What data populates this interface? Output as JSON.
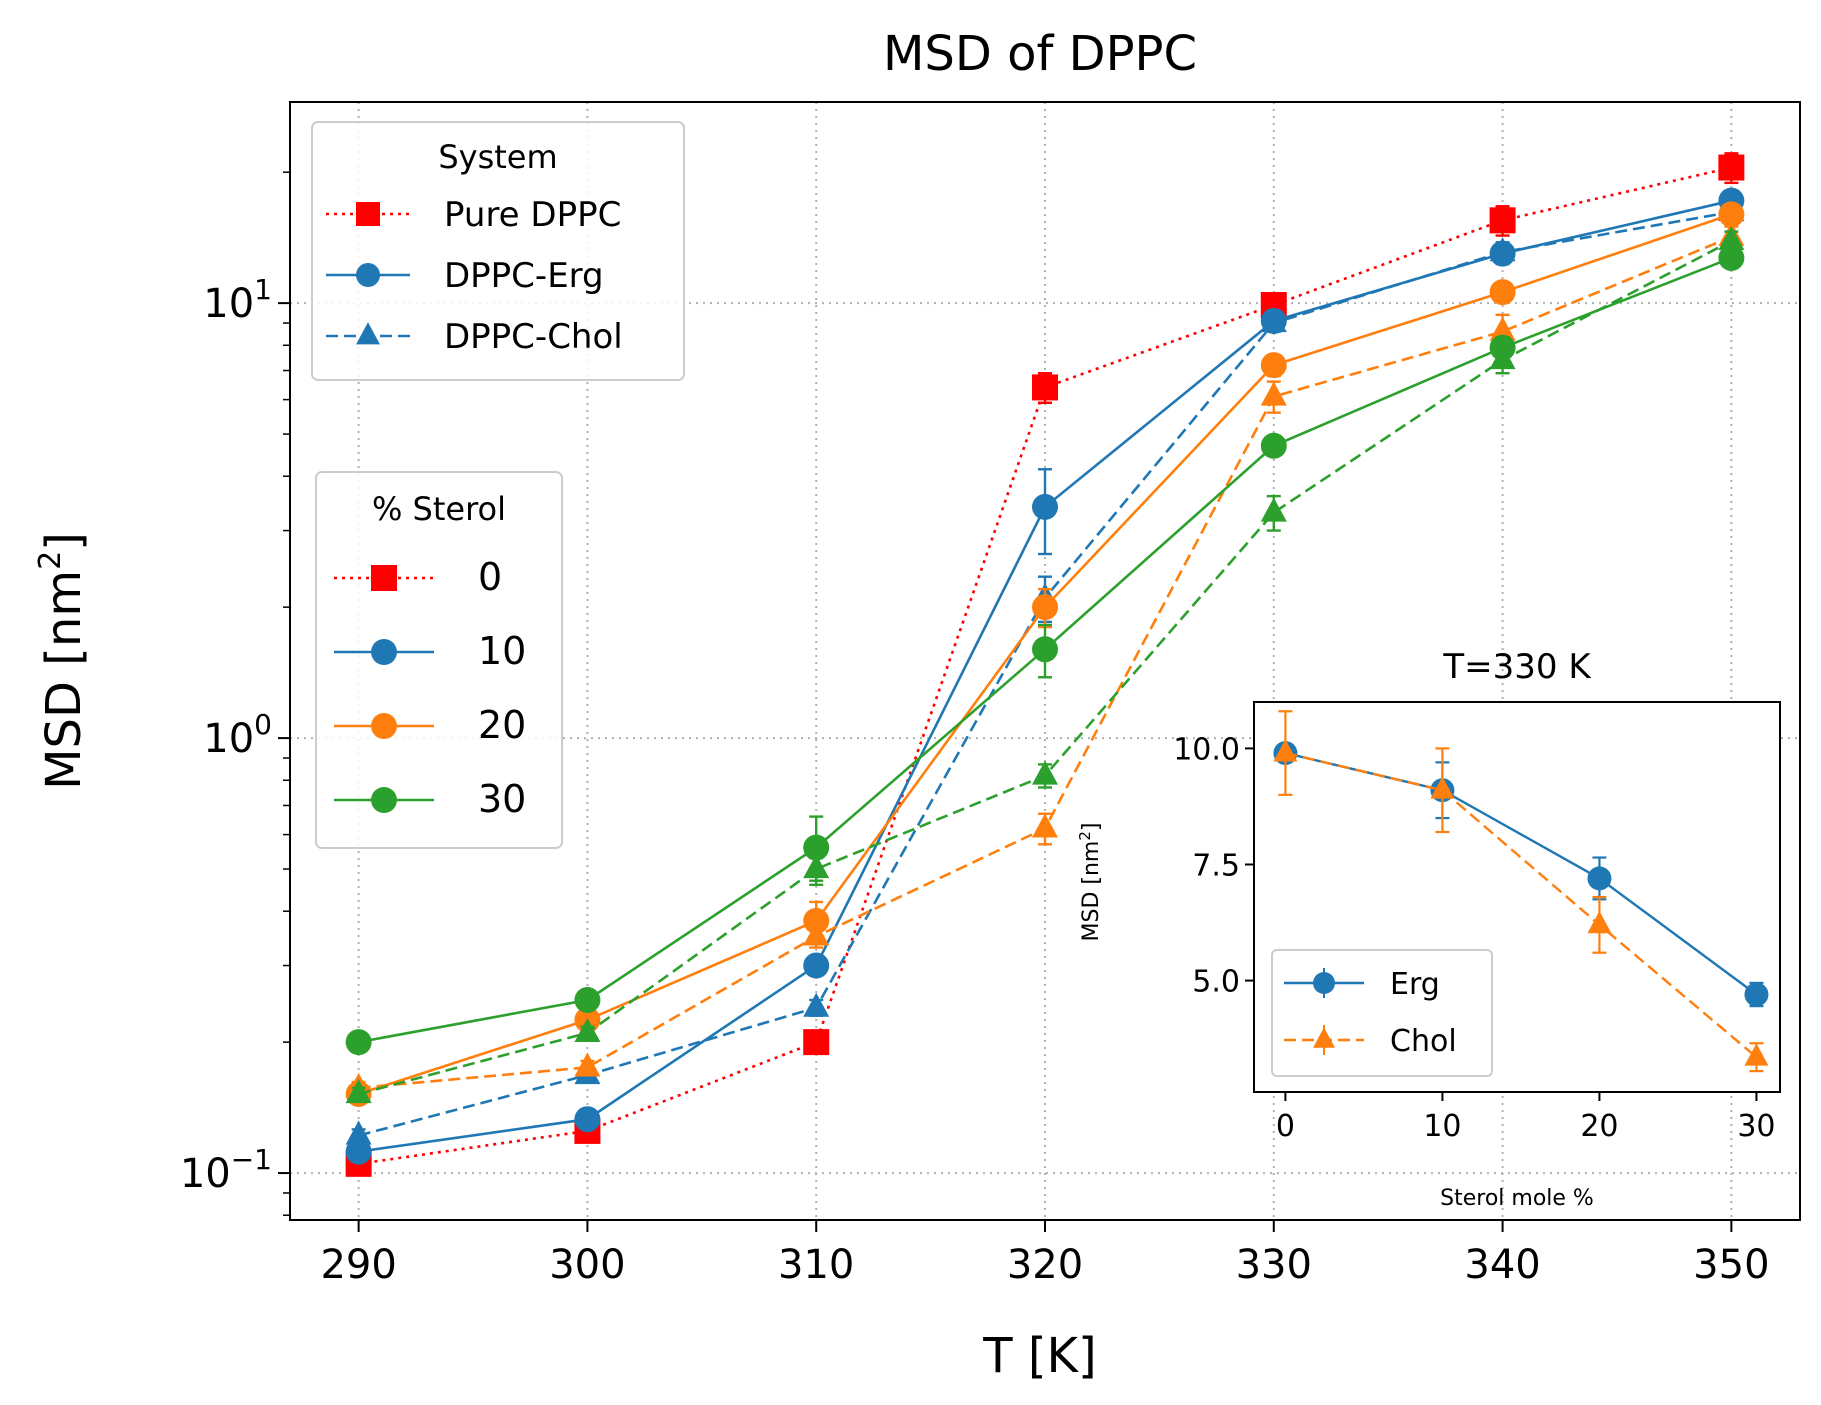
{
  "chart_data": {
    "type": "line",
    "title": "MSD of DPPC",
    "xlabel": "T [K]",
    "ylabel": "MSD [nm",
    "ylabel_sup": "2",
    "ylabel_end": "]",
    "yscale": "log",
    "xlim": [
      287,
      353
    ],
    "ylim": [
      0.078,
      29
    ],
    "x": [
      290,
      300,
      310,
      320,
      330,
      340,
      350
    ],
    "xticks": [
      "290",
      "300",
      "310",
      "320",
      "330",
      "340",
      "350"
    ],
    "yticks": [
      {
        "base": "10",
        "exp": "−1",
        "value": 0.1
      },
      {
        "base": "10",
        "exp": "0",
        "value": 1
      },
      {
        "base": "10",
        "exp": "1",
        "value": 10
      }
    ],
    "grid": true,
    "series": [
      {
        "name": "Pure DPPC",
        "sterol": 0,
        "color": "#ff0000",
        "marker": "square",
        "dash": "dotted",
        "values": [
          0.105,
          0.125,
          0.2,
          6.4,
          9.9,
          15.5,
          20.5
        ],
        "errors": [
          0.005,
          0.006,
          0.01,
          0.5,
          0.6,
          1.2,
          1.6
        ]
      },
      {
        "name": "DPPC-Erg 10",
        "sterol": 10,
        "color": "#1f77b4",
        "marker": "circle",
        "dash": "solid",
        "values": [
          0.112,
          0.133,
          0.3,
          3.4,
          9.1,
          13.0,
          17.2
        ],
        "errors": [
          0.004,
          0.005,
          0.015,
          0.75,
          0.5,
          0.7,
          0.9
        ]
      },
      {
        "name": "DPPC-Chol 10",
        "sterol": 10,
        "color": "#1f77b4",
        "marker": "triangle",
        "dash": "dashed",
        "values": [
          0.122,
          0.168,
          0.24,
          2.1,
          9.0,
          13.1,
          16.2
        ],
        "errors": [
          0.004,
          0.006,
          0.01,
          0.25,
          0.4,
          0.7,
          0.8
        ]
      },
      {
        "name": "DPPC-Erg 20",
        "sterol": 20,
        "color": "#ff7f0e",
        "marker": "circle",
        "dash": "solid",
        "values": [
          0.152,
          0.225,
          0.38,
          2.0,
          7.2,
          10.6,
          16.0
        ],
        "errors": [
          0.005,
          0.008,
          0.04,
          0.2,
          0.4,
          0.5,
          0.7
        ]
      },
      {
        "name": "DPPC-Chol 20",
        "sterol": 20,
        "color": "#ff7f0e",
        "marker": "triangle",
        "dash": "dashed",
        "values": [
          0.157,
          0.175,
          0.35,
          0.62,
          6.1,
          8.6,
          14.2
        ],
        "errors": [
          0.005,
          0.006,
          0.02,
          0.05,
          0.5,
          0.8,
          0.8
        ]
      },
      {
        "name": "DPPC-Erg 30",
        "sterol": 30,
        "color": "#2ca02c",
        "marker": "circle",
        "dash": "solid",
        "values": [
          0.2,
          0.25,
          0.56,
          1.6,
          4.7,
          7.9,
          12.7
        ],
        "errors": [
          0.006,
          0.008,
          0.1,
          0.22,
          0.2,
          0.45,
          0.6
        ]
      },
      {
        "name": "DPPC-Chol 30",
        "sterol": 30,
        "color": "#2ca02c",
        "marker": "triangle",
        "dash": "dashed",
        "values": [
          0.152,
          0.21,
          0.5,
          0.82,
          3.3,
          7.4,
          13.9
        ],
        "errors": [
          0.005,
          0.007,
          0.03,
          0.05,
          0.3,
          0.5,
          0.7
        ]
      }
    ],
    "legend_system": {
      "title": "System",
      "placement": "upper-left",
      "entries": [
        {
          "label": "Pure DPPC",
          "color": "#ff0000",
          "marker": "square",
          "dash": "dotted"
        },
        {
          "label": "DPPC-Erg",
          "color": "#1f77b4",
          "marker": "circle",
          "dash": "solid"
        },
        {
          "label": "DPPC-Chol",
          "color": "#1f77b4",
          "marker": "triangle",
          "dash": "dashed"
        }
      ]
    },
    "legend_sterol": {
      "title": "% Sterol",
      "placement": "center-left",
      "entries": [
        {
          "label": "0",
          "color": "#ff0000",
          "marker": "square",
          "dash": "dotted"
        },
        {
          "label": "10",
          "color": "#1f77b4",
          "marker": "circle",
          "dash": "solid"
        },
        {
          "label": "20",
          "color": "#ff7f0e",
          "marker": "circle",
          "dash": "solid"
        },
        {
          "label": "30",
          "color": "#2ca02c",
          "marker": "circle",
          "dash": "solid"
        }
      ]
    },
    "inset": {
      "type": "line",
      "title": "T=330 K",
      "xlabel": "Sterol mole %",
      "ylabel": "MSD [nm",
      "ylabel_sup": "2",
      "ylabel_end": "]",
      "xlim": [
        -2,
        31.5
      ],
      "ylim": [
        2.6,
        11.0
      ],
      "xticks": [
        0,
        10,
        20,
        30
      ],
      "xtick_labels": [
        "0",
        "10",
        "20",
        "30"
      ],
      "yticks": [
        5.0,
        7.5,
        10.0
      ],
      "ytick_labels": [
        "5.0",
        "7.5",
        "10.0"
      ],
      "legend_placement": "lower-left",
      "series": [
        {
          "name": "Erg",
          "color": "#1f77b4",
          "marker": "circle",
          "dash": "solid",
          "x": [
            0,
            10,
            20,
            30
          ],
          "values": [
            9.9,
            9.1,
            7.2,
            4.7
          ],
          "errors": [
            0.15,
            0.6,
            0.45,
            0.25
          ]
        },
        {
          "name": "Chol",
          "color": "#ff7f0e",
          "marker": "triangle",
          "dash": "dashed",
          "x": [
            0,
            10,
            20,
            30
          ],
          "values": [
            9.9,
            9.1,
            6.2,
            3.35
          ],
          "errors": [
            0.9,
            0.9,
            0.6,
            0.3
          ]
        }
      ]
    }
  }
}
